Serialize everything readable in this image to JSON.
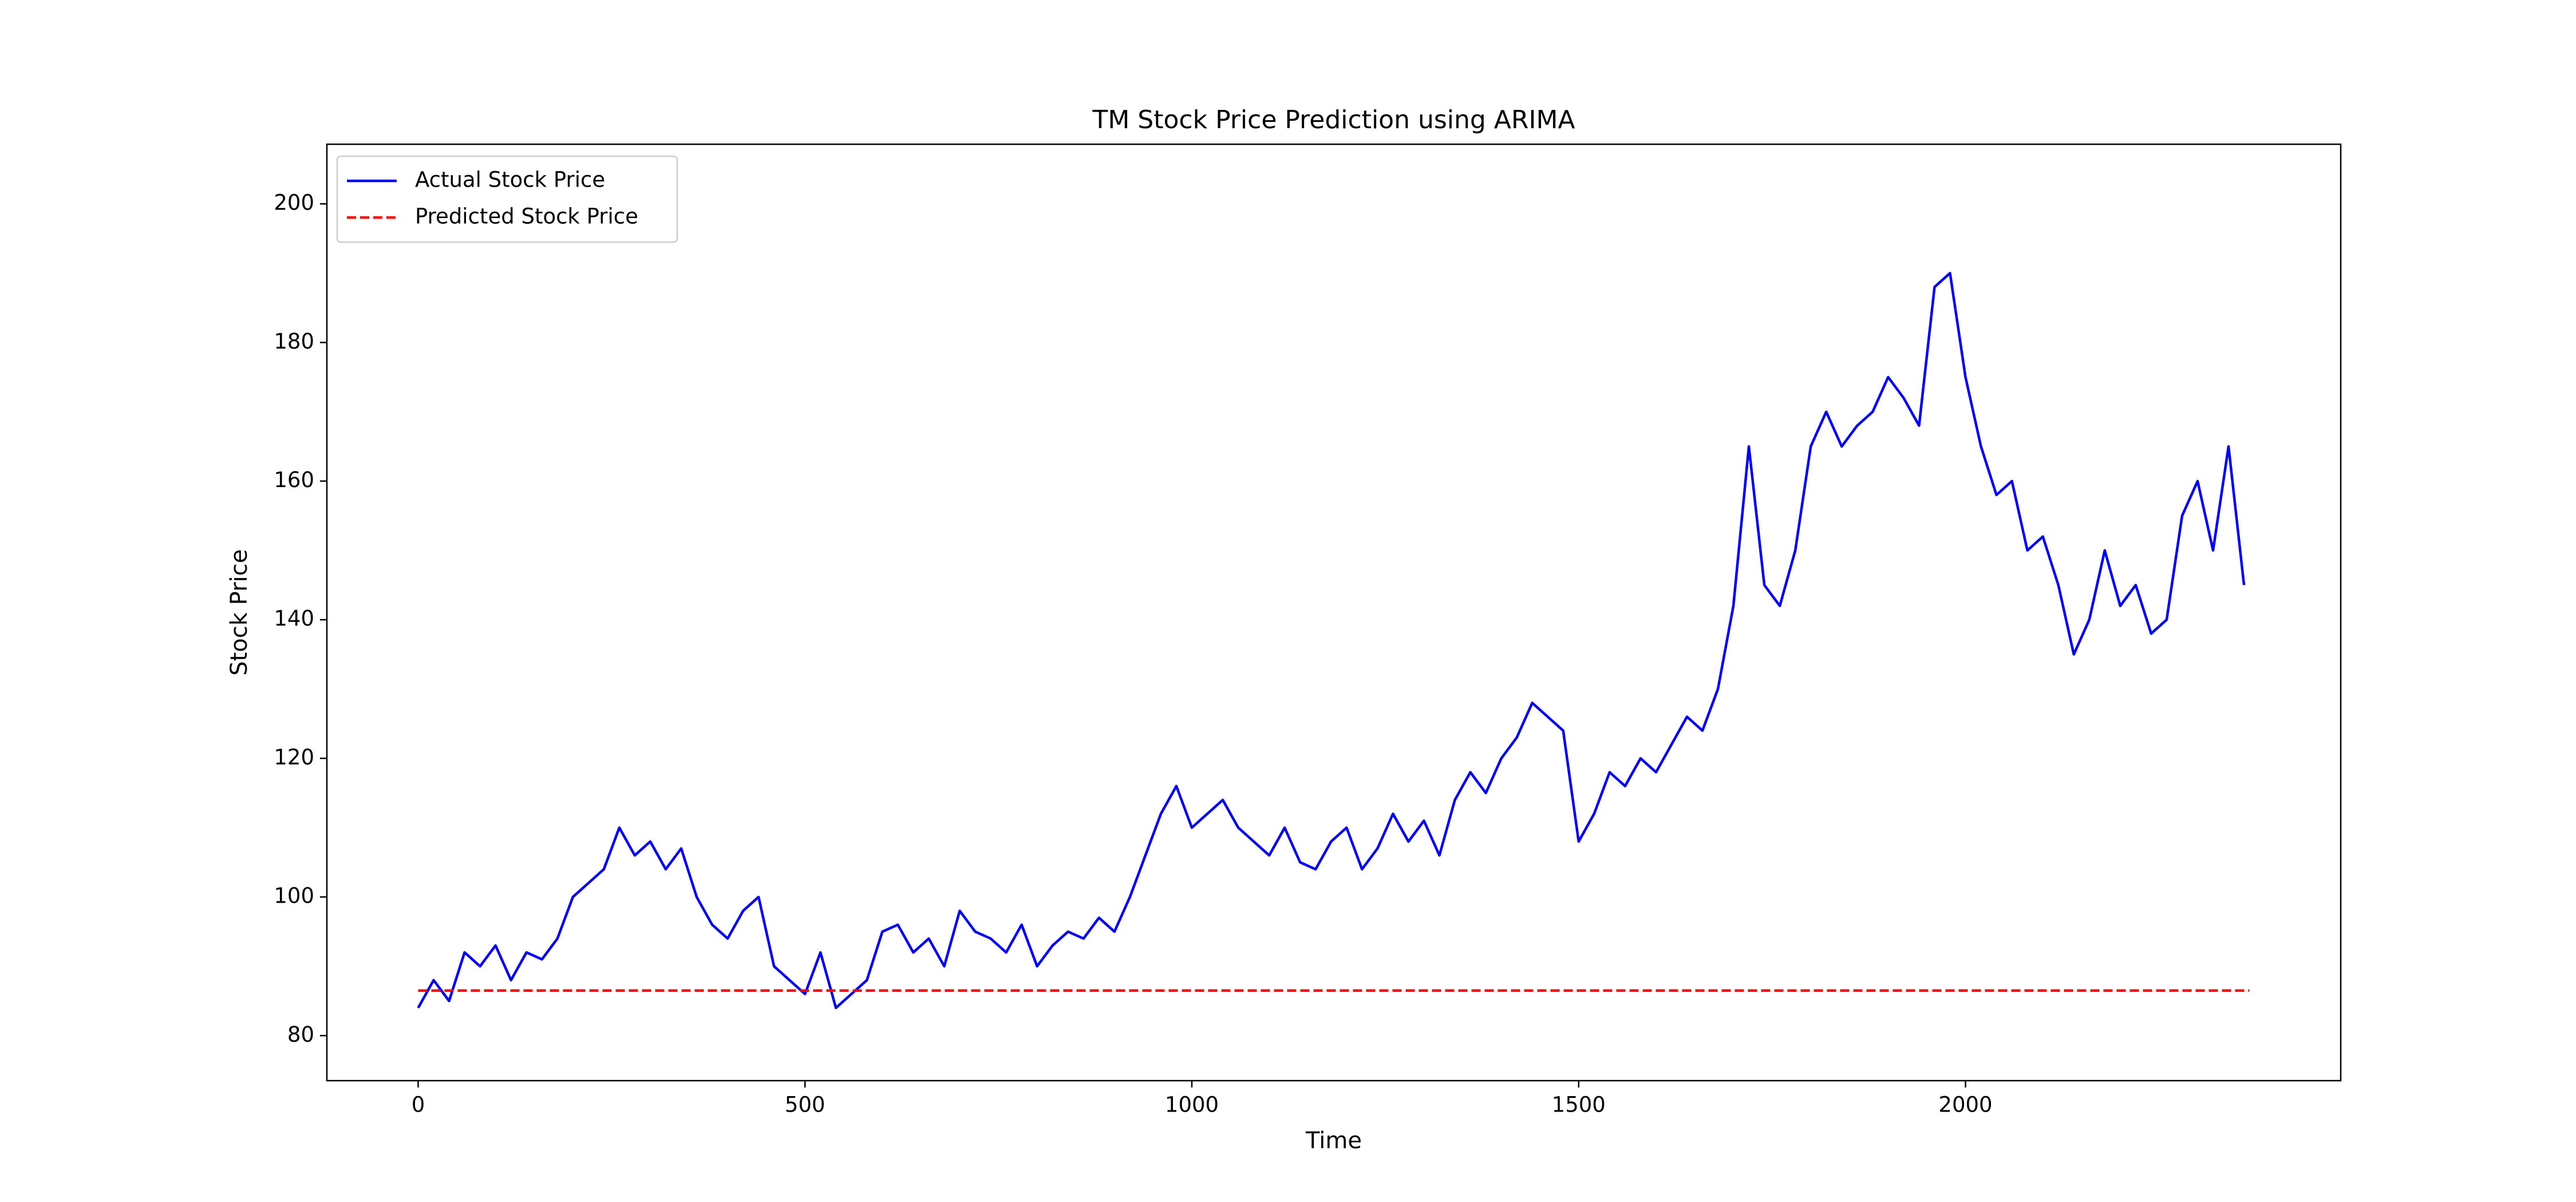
{
  "chart_data": {
    "type": "line",
    "title": "TM Stock Price Prediction using ARIMA",
    "xlabel": "Time",
    "ylabel": "Stock Price",
    "xlim": [
      -118,
      2485
    ],
    "ylim": [
      73.5,
      208.6
    ],
    "xticks": [
      0,
      500,
      1000,
      1500,
      2000
    ],
    "yticks": [
      80,
      100,
      120,
      140,
      160,
      180,
      200
    ],
    "legend": "upper left",
    "series": [
      {
        "name": "Actual Stock Price",
        "color": "#0000ff",
        "linestyle": "solid",
        "x": [
          0,
          20,
          40,
          60,
          80,
          100,
          120,
          140,
          160,
          180,
          200,
          220,
          240,
          260,
          280,
          300,
          320,
          340,
          360,
          380,
          400,
          420,
          440,
          460,
          480,
          500,
          520,
          540,
          560,
          580,
          600,
          620,
          640,
          660,
          680,
          700,
          720,
          740,
          760,
          780,
          800,
          820,
          840,
          860,
          880,
          900,
          920,
          940,
          960,
          980,
          1000,
          1020,
          1040,
          1060,
          1080,
          1100,
          1120,
          1140,
          1160,
          1180,
          1200,
          1220,
          1240,
          1260,
          1280,
          1300,
          1320,
          1340,
          1360,
          1380,
          1400,
          1420,
          1440,
          1460,
          1480,
          1500,
          1520,
          1540,
          1560,
          1580,
          1600,
          1620,
          1640,
          1660,
          1680,
          1700,
          1720,
          1740,
          1760,
          1780,
          1800,
          1820,
          1840,
          1860,
          1880,
          1900,
          1920,
          1940,
          1960,
          1980,
          2000,
          2020,
          2040,
          2060,
          2080,
          2100,
          2120,
          2140,
          2160,
          2180,
          2200,
          2220,
          2240,
          2260,
          2280,
          2300,
          2320,
          2340,
          2360
        ],
        "values": [
          84,
          88,
          85,
          92,
          90,
          93,
          88,
          92,
          91,
          94,
          100,
          102,
          104,
          110,
          106,
          108,
          104,
          107,
          100,
          96,
          94,
          98,
          100,
          90,
          88,
          86,
          92,
          84,
          86,
          88,
          95,
          96,
          92,
          94,
          90,
          98,
          95,
          94,
          92,
          96,
          90,
          93,
          95,
          94,
          97,
          95,
          100,
          106,
          112,
          116,
          110,
          112,
          114,
          110,
          108,
          106,
          110,
          105,
          104,
          108,
          110,
          104,
          107,
          112,
          108,
          111,
          106,
          114,
          118,
          115,
          120,
          123,
          128,
          126,
          124,
          108,
          112,
          118,
          116,
          120,
          118,
          122,
          126,
          124,
          130,
          142,
          165,
          145,
          142,
          150,
          165,
          170,
          165,
          168,
          170,
          175,
          172,
          168,
          188,
          190,
          175,
          165,
          158,
          160,
          150,
          152,
          145,
          135,
          140,
          150,
          142,
          145,
          138,
          140,
          155,
          160,
          150,
          165,
          145
        ]
      },
      {
        "name": "Predicted Stock Price",
        "color": "#ff0000",
        "linestyle": "dashed",
        "x": [
          0,
          2367
        ],
        "values": [
          86.5,
          86.5
        ]
      }
    ]
  }
}
